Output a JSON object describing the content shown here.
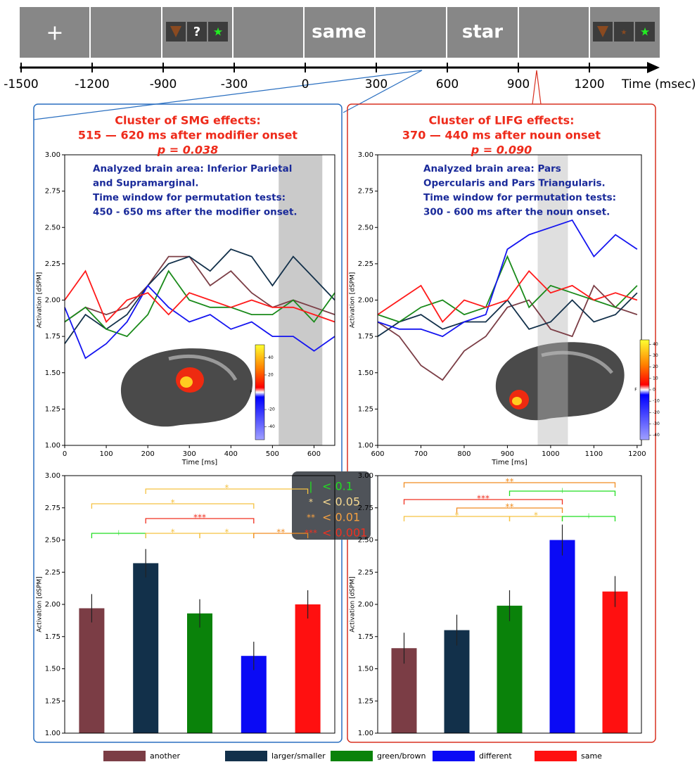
{
  "timeline": {
    "screens": [
      "+",
      "?",
      "same",
      "star"
    ],
    "ticks": [
      -1500,
      -1200,
      -900,
      -300,
      0,
      300,
      600,
      900,
      1200
    ],
    "label": "Time (msec)"
  },
  "chart_data": [
    {
      "type": "line",
      "title": [
        "Cluster of SMG effects:",
        "515  — 620 ms after modifier onset",
        "p = 0.038"
      ],
      "annotation": [
        "Analyzed brain area: Inferior Parietal",
        "and Supramarginal.",
        "Time window for permutation tests:",
        "450 - 650 ms after the modifier onset."
      ],
      "xlabel": "Time [ms]",
      "ylabel": "Activation [dSPM]",
      "x": [
        0,
        50,
        100,
        150,
        200,
        250,
        300,
        350,
        400,
        450,
        500,
        550,
        600,
        650
      ],
      "series": [
        {
          "name": "another",
          "color": "#7b3d45",
          "values": [
            1.85,
            1.95,
            1.9,
            1.95,
            2.1,
            2.3,
            2.3,
            2.1,
            2.2,
            2.05,
            1.95,
            2.0,
            1.95,
            1.9
          ]
        },
        {
          "name": "larger/smaller",
          "color": "#12304a",
          "values": [
            1.7,
            1.9,
            1.8,
            1.9,
            2.1,
            2.25,
            2.3,
            2.2,
            2.35,
            2.3,
            2.1,
            2.3,
            2.15,
            2.0
          ]
        },
        {
          "name": "green/brown",
          "color": "#1a8a1a",
          "values": [
            1.85,
            1.95,
            1.8,
            1.75,
            1.9,
            2.2,
            2.0,
            1.95,
            1.95,
            1.9,
            1.9,
            2.0,
            1.85,
            2.05
          ]
        },
        {
          "name": "different",
          "color": "#1414f0",
          "values": [
            1.95,
            1.6,
            1.7,
            1.85,
            2.1,
            1.95,
            1.85,
            1.9,
            1.8,
            1.85,
            1.75,
            1.75,
            1.65,
            1.75
          ]
        },
        {
          "name": "same",
          "color": "#ff1a1a",
          "values": [
            2.0,
            2.2,
            1.85,
            2.0,
            2.05,
            1.9,
            2.05,
            2.0,
            1.95,
            2.0,
            1.95,
            1.95,
            1.9,
            1.85
          ]
        }
      ],
      "shade": [
        515,
        620
      ],
      "xlim": [
        0,
        650
      ],
      "xticks": [
        0,
        100,
        200,
        300,
        400,
        500,
        600
      ],
      "ylim": [
        1,
        3
      ],
      "yticks": [
        {
          "value": 1,
          "label": "1.00"
        },
        {
          "value": 1.25,
          "label": "1.25"
        },
        {
          "value": 1.5,
          "label": "1.50"
        },
        {
          "value": 1.75,
          "label": "1.75"
        },
        {
          "value": 2,
          "label": "2.00"
        },
        {
          "value": 2.25,
          "label": "2.25"
        },
        {
          "value": 2.5,
          "label": "2.50"
        },
        {
          "value": 2.75,
          "label": "2.75"
        },
        {
          "value": 3,
          "label": "3.00"
        }
      ],
      "colorbar": {
        "label": "F",
        "lim": [
          -55,
          55
        ],
        "ticks": [
          40,
          20,
          -20,
          -40
        ]
      }
    },
    {
      "type": "line",
      "title": [
        "Cluster of LIFG effects:",
        "370 — 440 ms after noun onset",
        "p = 0.090"
      ],
      "annotation": [
        "Analyzed brain area: Pars",
        "Opercularis and Pars Triangularis.",
        "Time window for permutation tests:",
        "300 - 600 ms after the noun onset."
      ],
      "xlabel": "Time [ms]",
      "ylabel": "Activation [dSPM]",
      "x": [
        600,
        650,
        700,
        750,
        800,
        850,
        900,
        950,
        1000,
        1050,
        1100,
        1150,
        1200
      ],
      "series": [
        {
          "name": "another",
          "color": "#7b3d45",
          "values": [
            1.85,
            1.75,
            1.55,
            1.45,
            1.65,
            1.75,
            1.95,
            2.0,
            1.8,
            1.75,
            2.1,
            1.95,
            1.9
          ]
        },
        {
          "name": "larger/smaller",
          "color": "#12304a",
          "values": [
            1.75,
            1.85,
            1.9,
            1.8,
            1.85,
            1.85,
            2.0,
            1.8,
            1.85,
            2.0,
            1.85,
            1.9,
            2.05
          ]
        },
        {
          "name": "green/brown",
          "color": "#1a8a1a",
          "values": [
            1.9,
            1.85,
            1.95,
            2.0,
            1.9,
            1.95,
            2.3,
            1.95,
            2.1,
            2.05,
            2.0,
            1.95,
            2.1
          ]
        },
        {
          "name": "different",
          "color": "#1414f0",
          "values": [
            1.85,
            1.8,
            1.8,
            1.75,
            1.85,
            1.9,
            2.35,
            2.45,
            2.5,
            2.55,
            2.3,
            2.45,
            2.35
          ]
        },
        {
          "name": "same",
          "color": "#ff1a1a",
          "values": [
            1.9,
            2.0,
            2.1,
            1.85,
            2.0,
            1.95,
            2.0,
            2.2,
            2.05,
            2.1,
            2.0,
            2.05,
            2.0
          ]
        }
      ],
      "shade": [
        970,
        1040
      ],
      "xlim": [
        600,
        1210
      ],
      "xticks": [
        600,
        700,
        800,
        900,
        1000,
        1100,
        1200
      ],
      "ylim": [
        1,
        3
      ],
      "yticks": [
        {
          "value": 1,
          "label": "1.00"
        },
        {
          "value": 1.25,
          "label": "1.25"
        },
        {
          "value": 1.5,
          "label": "1.50"
        },
        {
          "value": 1.75,
          "label": "1.75"
        },
        {
          "value": 2,
          "label": "2.00"
        },
        {
          "value": 2.25,
          "label": "2.25"
        },
        {
          "value": 2.5,
          "label": "2.50"
        },
        {
          "value": 2.75,
          "label": "2.75"
        },
        {
          "value": 3,
          "label": "3.00"
        }
      ],
      "colorbar": {
        "label": "F",
        "lim": [
          -44,
          44
        ],
        "ticks": [
          40,
          30,
          20,
          10,
          0,
          -10,
          -20,
          -30,
          -40
        ]
      }
    },
    {
      "type": "bar",
      "ylabel": "Activation [dSPM]",
      "series": [
        {
          "name": "another",
          "color": "#7b3d45",
          "values": [
            1.97
          ],
          "errors": [
            0.11
          ]
        },
        {
          "name": "larger/smaller",
          "color": "#12304a",
          "values": [
            2.32
          ],
          "errors": [
            0.11
          ]
        },
        {
          "name": "green/brown",
          "color": "#0a820a",
          "values": [
            1.93
          ],
          "errors": [
            0.11
          ]
        },
        {
          "name": "different",
          "color": "#0a0af5",
          "values": [
            1.6
          ],
          "errors": [
            0.11
          ]
        },
        {
          "name": "same",
          "color": "#ff1010",
          "values": [
            2.0
          ],
          "errors": [
            0.11
          ]
        }
      ],
      "brackets": [
        {
          "from": 0,
          "to": 1,
          "label": "|",
          "color": "#22dd22"
        },
        {
          "from": 1,
          "to": 2,
          "label": "*",
          "color": "#f5c242"
        },
        {
          "from": 2,
          "to": 3,
          "label": "*",
          "color": "#f5c242"
        },
        {
          "from": 3,
          "to": 4,
          "label": "**",
          "color": "#f08c20"
        },
        {
          "from": 1,
          "to": 3,
          "label": "***",
          "color": "#f03020"
        },
        {
          "from": 0,
          "to": 3,
          "label": "*",
          "color": "#f5c242"
        },
        {
          "from": 1,
          "to": 4,
          "label": "*",
          "color": "#f5c242"
        }
      ],
      "ylim": [
        1,
        3
      ],
      "yticks": [
        {
          "value": 1,
          "label": "1.00"
        },
        {
          "value": 1.25,
          "label": "1.25"
        },
        {
          "value": 1.5,
          "label": "1.50"
        },
        {
          "value": 1.75,
          "label": "1.75"
        },
        {
          "value": 2,
          "label": "2.00"
        },
        {
          "value": 2.25,
          "label": "2.25"
        },
        {
          "value": 2.5,
          "label": "2.50"
        },
        {
          "value": 2.75,
          "label": "2.75"
        },
        {
          "value": 3,
          "label": "3.00"
        }
      ]
    },
    {
      "type": "bar",
      "ylabel": "Activation [dSPM]",
      "series": [
        {
          "name": "another",
          "color": "#7b3d45",
          "values": [
            1.66
          ],
          "errors": [
            0.12
          ]
        },
        {
          "name": "larger/smaller",
          "color": "#12304a",
          "values": [
            1.8
          ],
          "errors": [
            0.12
          ]
        },
        {
          "name": "green/brown",
          "color": "#0a820a",
          "values": [
            1.99
          ],
          "errors": [
            0.12
          ]
        },
        {
          "name": "different",
          "color": "#0a0af5",
          "values": [
            2.5
          ],
          "errors": [
            0.12
          ]
        },
        {
          "name": "same",
          "color": "#ff1010",
          "values": [
            2.1
          ],
          "errors": [
            0.12
          ]
        }
      ],
      "brackets": [
        {
          "from": 0,
          "to": 2,
          "label": "*",
          "color": "#f5c242"
        },
        {
          "from": 2,
          "to": 3,
          "label": "*",
          "color": "#f5c242"
        },
        {
          "from": 3,
          "to": 4,
          "label": "|",
          "color": "#22dd22"
        },
        {
          "from": 1,
          "to": 3,
          "label": "**",
          "color": "#f08c20"
        },
        {
          "from": 0,
          "to": 3,
          "label": "***",
          "color": "#f03020"
        },
        {
          "from": 2,
          "to": 4,
          "label": "|",
          "color": "#22dd22"
        },
        {
          "from": 0,
          "to": 4,
          "label": "**",
          "color": "#f08c20"
        }
      ],
      "ylim": [
        1,
        3
      ],
      "yticks": [
        {
          "value": 1,
          "label": "1.00"
        },
        {
          "value": 1.25,
          "label": "1.25"
        },
        {
          "value": 1.5,
          "label": "1.50"
        },
        {
          "value": 1.75,
          "label": "1.75"
        },
        {
          "value": 2,
          "label": "2.00"
        },
        {
          "value": 2.25,
          "label": "2.25"
        },
        {
          "value": 2.5,
          "label": "2.50"
        },
        {
          "value": 2.75,
          "label": "2.75"
        },
        {
          "value": 3,
          "label": "3.00"
        }
      ]
    }
  ],
  "significance_legend": [
    {
      "symbol": "|",
      "text": "< 0.1",
      "color": "#22dd22"
    },
    {
      "symbol": "*",
      "text": "< 0.05",
      "color": "#f5d890"
    },
    {
      "symbol": "**",
      "text": "< 0.01",
      "color": "#f5a040"
    },
    {
      "symbol": "***",
      "text": "< 0.001",
      "color": "#f03020"
    }
  ]
}
